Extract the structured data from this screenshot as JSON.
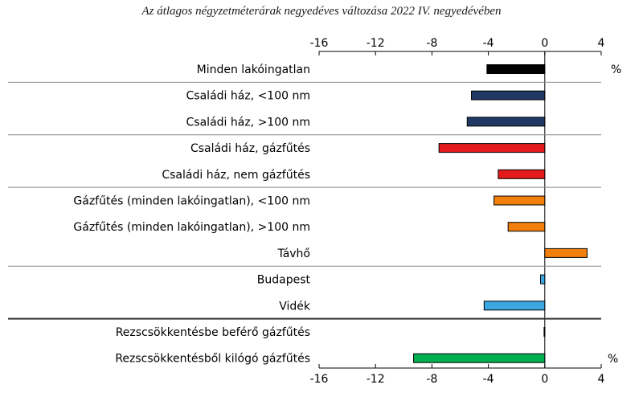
{
  "chart_data": {
    "type": "bar",
    "orientation": "horizontal",
    "title": "Az átlagos négyzetméterárak negyedéves változása 2022 IV. negyedévében",
    "unit_label": "%",
    "xlim": [
      -16,
      4
    ],
    "x_ticks": [
      "-16",
      "-12",
      "-8",
      "-4",
      "0",
      "4"
    ],
    "categories": [
      "Minden lakóingatlan",
      "Családi ház, <100 nm",
      "Családi ház, >100 nm",
      "Családi ház, gázfűtés",
      "Családi ház, nem gázfűtés",
      "Gázfűtés (minden lakóingatlan), <100 nm",
      "Gázfűtés (minden lakóingatlan), >100 nm",
      "Távhő",
      "Budapest",
      "Vidék",
      "Rezscsökkentésbe beférő gázfűtés",
      "Rezscsökkentésből kilógó gázfűtés"
    ],
    "values": [
      -4.1,
      -5.2,
      -5.5,
      -7.5,
      -3.3,
      -3.6,
      -2.6,
      3.0,
      -0.3,
      -4.3,
      -0.05,
      -9.3
    ],
    "colors": [
      "#000000",
      "#1f3864",
      "#1f3864",
      "#e41a1c",
      "#e41a1c",
      "#f07f0b",
      "#f07f0b",
      "#f07f0b",
      "#3aa7e1",
      "#3aa7e1",
      "#00a651",
      "#00b050"
    ],
    "groups": [
      [
        0
      ],
      [
        1,
        2
      ],
      [
        3,
        4
      ],
      [
        5,
        6,
        7
      ],
      [
        8,
        9
      ],
      [
        10,
        11
      ]
    ],
    "grid": false,
    "legend": "none"
  }
}
